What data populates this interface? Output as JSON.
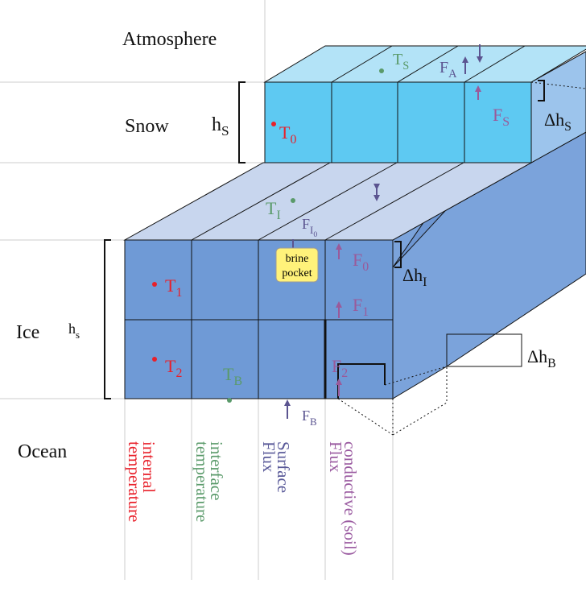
{
  "layers": {
    "atmosphere": "Atmosphere",
    "snow": "Snow",
    "ice": "Ice",
    "ocean": "Ocean"
  },
  "thickness": {
    "snow": {
      "base": "h",
      "sub": "S"
    },
    "ice": {
      "base": "h",
      "sub": "s"
    },
    "delta_snow": {
      "base": "Δh",
      "sub": "S"
    },
    "delta_ice": {
      "base": "Δh",
      "sub": "I"
    },
    "delta_bottom": {
      "base": "Δh",
      "sub": "B"
    }
  },
  "variables": {
    "T_S": {
      "base": "T",
      "sub": "S"
    },
    "T_0": {
      "base": "T",
      "sub": "0"
    },
    "T_I": {
      "base": "T",
      "sub": "I"
    },
    "T_1": {
      "base": "T",
      "sub": "1"
    },
    "T_2": {
      "base": "T",
      "sub": "2"
    },
    "T_B": {
      "base": "T",
      "sub": "B"
    },
    "F_A": {
      "base": "F",
      "sub": "A"
    },
    "F_S": {
      "base": "F",
      "sub": "S"
    },
    "F_I0": {
      "base": "F",
      "sub": "I",
      "subsub": "0"
    },
    "F_0": {
      "base": "F",
      "sub": "0"
    },
    "F_1": {
      "base": "F",
      "sub": "1"
    },
    "F_2": {
      "base": "F",
      "sub": "2"
    },
    "F_B": {
      "base": "F",
      "sub": "B"
    }
  },
  "brine_pocket": [
    "brine",
    "pocket"
  ],
  "legend": [
    {
      "lines": [
        "internal",
        "temperature"
      ]
    },
    {
      "lines": [
        "interface",
        "temperature"
      ]
    },
    {
      "lines": [
        "Surface",
        "Flux"
      ]
    },
    {
      "lines": [
        "conductive (soil)",
        "Flux"
      ]
    }
  ]
}
